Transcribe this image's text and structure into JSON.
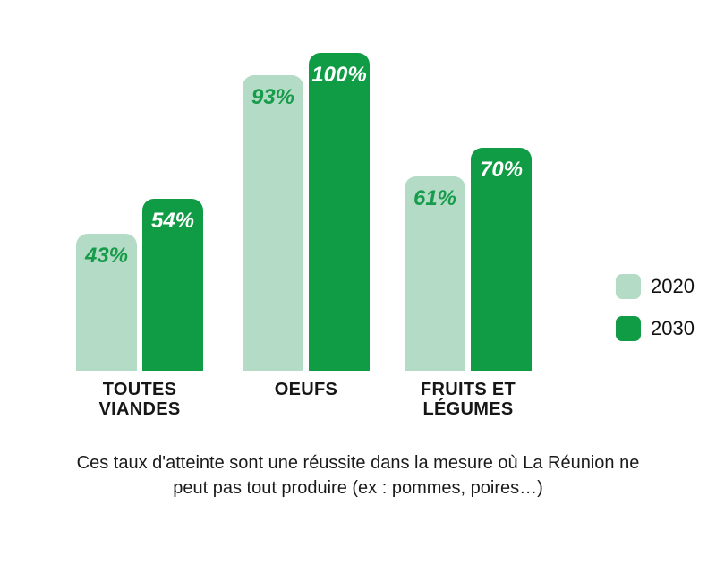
{
  "chart_data": {
    "type": "bar",
    "categories": [
      "TOUTES VIANDES",
      "OEUFS",
      "FRUITS ET LÉGUMES"
    ],
    "category_labels": [
      "TOUTES\nVIANDES",
      "OEUFS",
      "FRUITS ET\nLÉGUMES"
    ],
    "series": [
      {
        "name": "2020",
        "values": [
          43,
          93,
          61
        ],
        "color": "#b4dbc5",
        "label_color": "#179c4b"
      },
      {
        "name": "2030",
        "values": [
          54,
          100,
          70
        ],
        "color": "#0f9c45",
        "label_color": "#ffffff"
      }
    ],
    "value_suffix": "%",
    "value_labels": [
      "43%",
      "54%",
      "93%",
      "100%",
      "61%",
      "70%"
    ],
    "title": "",
    "xlabel": "",
    "ylabel": "",
    "ylim": [
      0,
      100
    ],
    "grid": false,
    "legend_position": "right",
    "caption": "Ces taux d'atteinte sont une réussite dans la mesure où La Réunion ne peut pas tout produire (ex : pommes, poires…)"
  },
  "legend": {
    "items": [
      {
        "label": "2020",
        "color": "#b4dbc5"
      },
      {
        "label": "2030",
        "color": "#0f9c45"
      }
    ]
  },
  "colors": {
    "background": "#ffffff",
    "light_green": "#b4dbc5",
    "dark_green": "#0f9c45",
    "value_text_green": "#179c4b",
    "text_black": "#161616"
  }
}
